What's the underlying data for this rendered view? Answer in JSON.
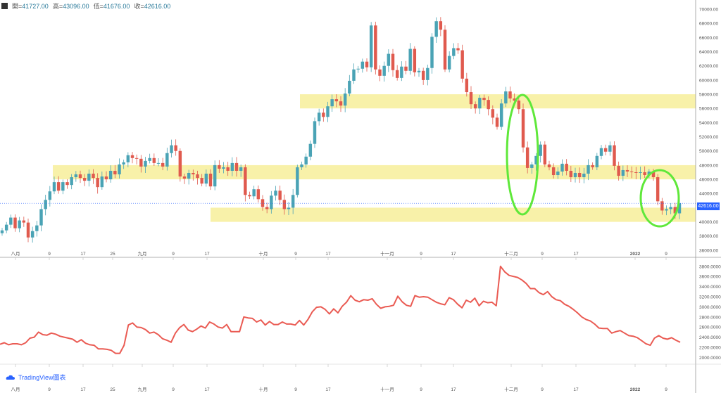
{
  "ohlc": {
    "open_label": "開=",
    "open": "41727.00",
    "high_label": "高=",
    "high": "43096.00",
    "low_label": "低=",
    "low": "41676.00",
    "close_label": "收=",
    "close": "42616.00"
  },
  "last_price": "42616.00",
  "branding": "TradingView圖表",
  "colors": {
    "up": "#4aa3b5",
    "down": "#e05a4e",
    "zone": "#f7ef9a",
    "circle": "#5fe83a",
    "indicator": "#ea5b53"
  },
  "chart_data": [
    {
      "type": "candlestick",
      "y_ticks": [
        "70000.00",
        "68000.00",
        "66000.00",
        "64000.00",
        "62000.00",
        "60000.00",
        "58000.00",
        "56000.00",
        "54000.00",
        "52000.00",
        "50000.00",
        "48000.00",
        "46000.00",
        "44000.00",
        "42000.00",
        "40000.00",
        "38000.00",
        "36000.00"
      ],
      "ylim": [
        35000,
        70500
      ],
      "x_ticks": [
        "八月",
        "9",
        "17",
        "25",
        "九月",
        "9",
        "17",
        "十月",
        "9",
        "17",
        "十一月",
        "9",
        "17",
        "十二月",
        "9",
        "17",
        "2022",
        "9"
      ],
      "zones": [
        [
          56000,
          58000
        ],
        [
          46000,
          48000
        ],
        [
          40000,
          42000
        ]
      ],
      "closes": [
        38800,
        39600,
        40600,
        39100,
        40200,
        39900,
        37800,
        38700,
        39500,
        41800,
        43100,
        44300,
        45600,
        44400,
        45600,
        45200,
        46300,
        46700,
        46200,
        45800,
        46800,
        46200,
        44900,
        46400,
        46000,
        47200,
        46700,
        48100,
        48400,
        49400,
        49000,
        48900,
        47800,
        48600,
        49000,
        48300,
        48300,
        47800,
        49700,
        50800,
        50000,
        46400,
        46100,
        46900,
        46700,
        46200,
        45400,
        46800,
        45000,
        48000,
        47500,
        47700,
        47200,
        48300,
        47200,
        47700,
        43800,
        43600,
        44600,
        43200,
        42100,
        41800,
        43700,
        44400,
        43100,
        41800,
        42000,
        43800,
        47700,
        48100,
        49200,
        51000,
        54200,
        55400,
        54800,
        56300,
        57300,
        57000,
        56400,
        58100,
        59900,
        61500,
        61600,
        62600,
        61800,
        67700,
        61500,
        60600,
        62000,
        63700,
        61400,
        60300,
        61900,
        61300,
        64400,
        61100,
        61300,
        60000,
        61700,
        66100,
        68300,
        67100,
        61500,
        63400,
        64500,
        64200,
        60200,
        58300,
        56600,
        56000,
        57500,
        57200,
        55900,
        54700,
        53400,
        56700,
        58400,
        57400,
        57100,
        55900,
        50500,
        47600,
        48100,
        49300,
        50900,
        48100,
        47700,
        46600,
        47100,
        48200,
        47200,
        46300,
        46900,
        46300,
        46800,
        48000,
        47700,
        49300,
        50400,
        49900,
        50800,
        47900,
        46500,
        47300,
        47100,
        47000,
        46900,
        47000,
        46600,
        47100,
        46300,
        42900,
        41600,
        41800,
        42100,
        41200,
        42616
      ]
    },
    {
      "type": "line",
      "y_ticks": [
        "3800.0000",
        "3600.0000",
        "3400.0000",
        "3200.0000",
        "3000.0000",
        "2800.0000",
        "2600.0000",
        "2400.0000",
        "2200.0000",
        "2000.0000"
      ],
      "ylim": [
        1950,
        3880
      ],
      "values": [
        2260,
        2290,
        2250,
        2270,
        2270,
        2250,
        2290,
        2380,
        2400,
        2500,
        2450,
        2440,
        2480,
        2460,
        2420,
        2400,
        2380,
        2360,
        2300,
        2350,
        2280,
        2250,
        2240,
        2170,
        2170,
        2160,
        2140,
        2080,
        2080,
        2240,
        2640,
        2680,
        2600,
        2590,
        2550,
        2480,
        2500,
        2450,
        2370,
        2340,
        2300,
        2480,
        2590,
        2650,
        2540,
        2510,
        2560,
        2620,
        2580,
        2700,
        2660,
        2600,
        2580,
        2650,
        2510,
        2510,
        2510,
        2800,
        2780,
        2770,
        2700,
        2740,
        2640,
        2710,
        2650,
        2650,
        2700,
        2660,
        2660,
        2640,
        2730,
        2640,
        2750,
        2900,
        2990,
        3000,
        2950,
        2860,
        2960,
        2880,
        3010,
        3090,
        3220,
        3130,
        3100,
        3140,
        3130,
        3160,
        3050,
        2970,
        3000,
        3010,
        3030,
        3210,
        3100,
        3030,
        3010,
        3220,
        3190,
        3200,
        3190,
        3140,
        3090,
        3060,
        3040,
        3180,
        3140,
        3050,
        2980,
        3130,
        3090,
        3170,
        3020,
        3110,
        3080,
        3090,
        3020,
        3800,
        3690,
        3620,
        3600,
        3580,
        3530,
        3460,
        3360,
        3360,
        3280,
        3240,
        3300,
        3200,
        3140,
        3120,
        3050,
        3010,
        2950,
        2880,
        2800,
        2750,
        2720,
        2660,
        2580,
        2570,
        2570,
        2480,
        2510,
        2530,
        2480,
        2430,
        2420,
        2390,
        2330,
        2270,
        2240,
        2380,
        2430,
        2380,
        2360,
        2390,
        2340,
        2300
      ]
    }
  ]
}
